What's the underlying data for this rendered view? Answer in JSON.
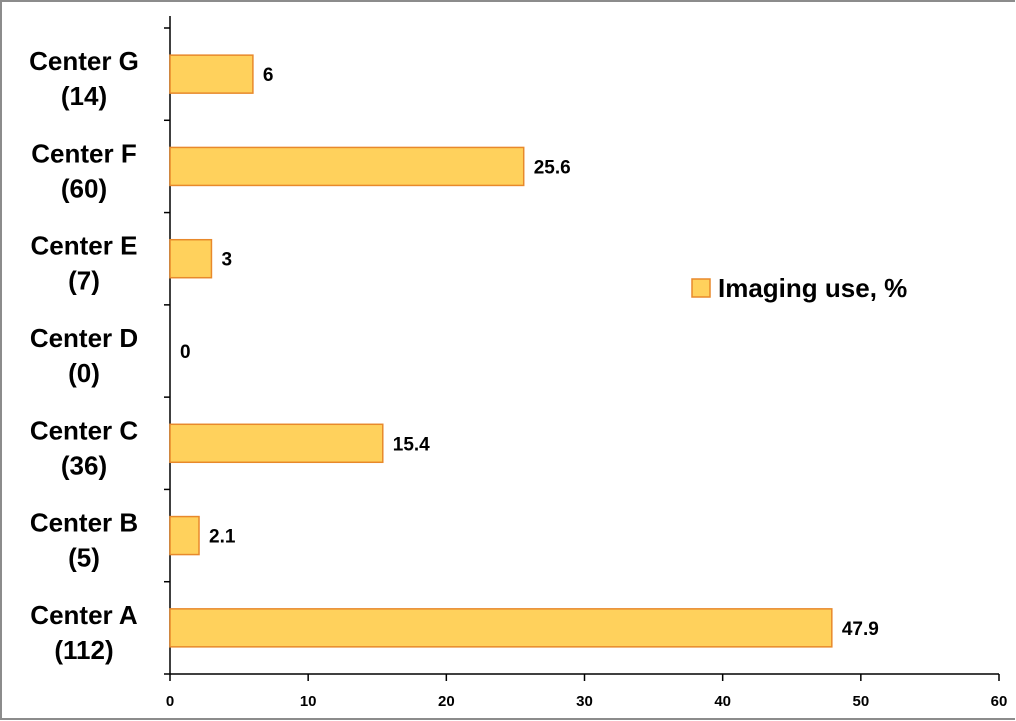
{
  "chart_data": {
    "type": "bar",
    "orientation": "horizontal",
    "categories": [
      [
        "Center A",
        "(112)"
      ],
      [
        "Center B",
        "(5)"
      ],
      [
        "Center C",
        "(36)"
      ],
      [
        "Center D",
        "(0)"
      ],
      [
        "Center E",
        "(7)"
      ],
      [
        "Center F",
        "(60)"
      ],
      [
        "Center G",
        "(14)"
      ]
    ],
    "series": [
      {
        "name": "Imaging use, %",
        "values": [
          47.9,
          2.1,
          15.4,
          0,
          3,
          25.6,
          6
        ],
        "value_labels": [
          "47.9",
          "2.1",
          "15.4",
          "0",
          "3",
          "25.6",
          "6"
        ]
      }
    ],
    "xlim": [
      0,
      60
    ],
    "x_ticks": [
      "0",
      "10",
      "20",
      "30",
      "40",
      "50",
      "60"
    ],
    "grid": false,
    "legend_position": "right",
    "colors": {
      "bar_fill": "#FFD15C",
      "bar_stroke": "#E8892B",
      "axis": "#000000",
      "frame": "#8C8C8C"
    }
  }
}
